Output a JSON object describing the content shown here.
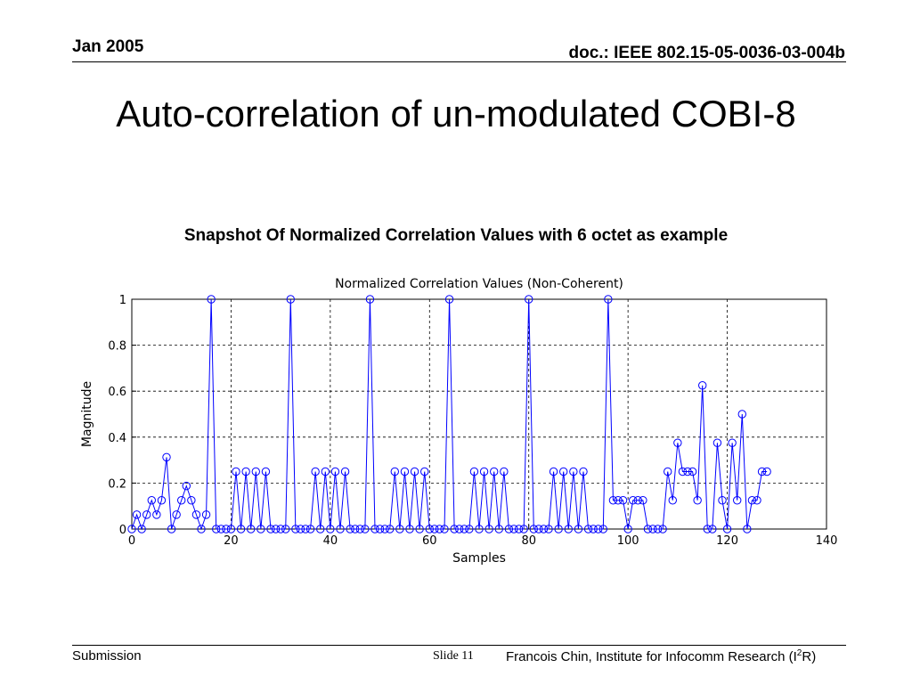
{
  "header": {
    "date": "Jan 2005",
    "doc_id": "doc.: IEEE 802.15-05-0036-03-004b"
  },
  "slide": {
    "title": "Auto-correlation of un-modulated COBI-8",
    "subtitle": "Snapshot Of Normalized Correlation Values with 6 octet as example"
  },
  "footer": {
    "left": "Submission",
    "slide_label": "Slide 11",
    "author_prefix": "Francois Chin, Institute for Infocomm Research (I",
    "author_sup": "2",
    "author_suffix": "R)"
  },
  "colors": {
    "series": "#0000ff",
    "grid": "#000000"
  },
  "chart_data": {
    "type": "line",
    "title": "Normalized Correlation Values (Non-Coherent)",
    "xlabel": "Samples",
    "ylabel": "Magnitude",
    "xlim": [
      0,
      140
    ],
    "ylim": [
      0,
      1
    ],
    "xticks": [
      0,
      20,
      40,
      60,
      80,
      100,
      120,
      140
    ],
    "yticks": [
      0,
      0.2,
      0.4,
      0.6,
      0.8,
      1
    ],
    "ytick_labels": [
      "0",
      "0.2",
      "0.4",
      "0.6",
      "0.8",
      "1"
    ],
    "grid": "dashed",
    "marker": "circle",
    "series": [
      {
        "x": [
          0,
          1,
          2,
          3,
          4,
          5,
          6,
          7,
          8,
          9,
          10,
          11,
          12,
          13,
          14,
          15,
          16,
          17,
          18,
          19,
          20,
          21,
          22,
          23,
          24,
          25,
          26,
          27,
          28,
          29,
          30,
          31,
          32,
          33,
          34,
          35,
          36,
          37,
          38,
          39,
          40,
          41,
          42,
          43,
          44,
          45,
          46,
          47,
          48,
          49,
          50,
          51,
          52,
          53,
          54,
          55,
          56,
          57,
          58,
          59,
          60,
          61,
          62,
          63,
          64,
          65,
          66,
          67,
          68,
          69,
          70,
          71,
          72,
          73,
          74,
          75,
          76,
          77,
          78,
          79,
          80,
          81,
          82,
          83,
          84,
          85,
          86,
          87,
          88,
          89,
          90,
          91,
          92,
          93,
          94,
          95,
          96,
          97,
          98,
          99,
          100,
          101,
          102,
          103,
          104,
          105,
          106,
          107,
          108,
          109,
          110,
          111,
          112,
          113,
          114,
          115,
          116,
          117,
          118,
          119,
          120,
          121,
          122,
          123,
          124,
          125,
          126,
          127,
          128
        ],
        "y": [
          0,
          0.0625,
          0,
          0.0625,
          0.125,
          0.0625,
          0.125,
          0.3125,
          0,
          0.0625,
          0.125,
          0.1875,
          0.125,
          0.0625,
          0,
          0.0625,
          1,
          0,
          0,
          0,
          0,
          0.25,
          0,
          0.25,
          0,
          0.25,
          0,
          0.25,
          0,
          0,
          0,
          0,
          1,
          0,
          0,
          0,
          0,
          0.25,
          0,
          0.25,
          0,
          0.25,
          0,
          0.25,
          0,
          0,
          0,
          0,
          1,
          0,
          0,
          0,
          0,
          0.25,
          0,
          0.25,
          0,
          0.25,
          0,
          0.25,
          0,
          0,
          0,
          0,
          1,
          0,
          0,
          0,
          0,
          0.25,
          0,
          0.25,
          0,
          0.25,
          0,
          0.25,
          0,
          0,
          0,
          0,
          1,
          0,
          0,
          0,
          0,
          0.25,
          0,
          0.25,
          0,
          0.25,
          0,
          0.25,
          0,
          0,
          0,
          0,
          1,
          0.125,
          0.125,
          0.125,
          0,
          0.125,
          0.125,
          0.125,
          0,
          0,
          0,
          0,
          0.25,
          0.125,
          0.375,
          0.25,
          0.25,
          0.25,
          0.125,
          0.625,
          0,
          0,
          0.375,
          0.125,
          0,
          0.375,
          0.125,
          0.5,
          0,
          0.125,
          0.125,
          0.25,
          0.25
        ]
      }
    ]
  }
}
